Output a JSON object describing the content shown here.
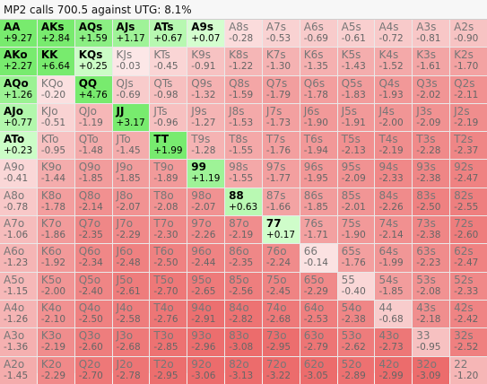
{
  "title": "MP2 calls 700.5 against UTG: 8.1%",
  "rows": [
    [
      [
        "AA",
        "+9.27"
      ],
      [
        "AKs",
        "+2.84"
      ],
      [
        "AQs",
        "+1.59"
      ],
      [
        "AJs",
        "+1.17"
      ],
      [
        "ATs",
        "+0.67"
      ],
      [
        "A9s",
        "+0.07"
      ],
      [
        "A8s",
        "-0.28"
      ],
      [
        "A7s",
        "-0.53"
      ],
      [
        "A6s",
        "-0.69"
      ],
      [
        "A5s",
        "-0.61"
      ],
      [
        "A4s",
        "-0.72"
      ],
      [
        "A3s",
        "-0.81"
      ],
      [
        "A2s",
        "-0.90"
      ]
    ],
    [
      [
        "AKo",
        "+2.27"
      ],
      [
        "KK",
        "+6.64"
      ],
      [
        "KQs",
        "+0.25"
      ],
      [
        "KJs",
        "-0.03"
      ],
      [
        "KTs",
        "-0.45"
      ],
      [
        "K9s",
        "-0.91"
      ],
      [
        "K8s",
        "-1.22"
      ],
      [
        "K7s",
        "-1.30"
      ],
      [
        "K6s",
        "-1.35"
      ],
      [
        "K5s",
        "-1.43"
      ],
      [
        "K4s",
        "-1.52"
      ],
      [
        "K3s",
        "-1.61"
      ],
      [
        "K2s",
        "-1.70"
      ]
    ],
    [
      [
        "AQo",
        "+1.26"
      ],
      [
        "KQo",
        "-0.20"
      ],
      [
        "QQ",
        "+4.76"
      ],
      [
        "QJs",
        "-0.69"
      ],
      [
        "QTs",
        "-0.98"
      ],
      [
        "Q9s",
        "-1.32"
      ],
      [
        "Q8s",
        "-1.59"
      ],
      [
        "Q7s",
        "-1.79"
      ],
      [
        "Q6s",
        "-1.78"
      ],
      [
        "Q5s",
        "-1.83"
      ],
      [
        "Q4s",
        "-1.93"
      ],
      [
        "Q3s",
        "-2.02"
      ],
      [
        "Q2s",
        "-2.11"
      ]
    ],
    [
      [
        "AJo",
        "+0.77"
      ],
      [
        "KJo",
        "-0.51"
      ],
      [
        "QJo",
        "-1.19"
      ],
      [
        "JJ",
        "+3.17"
      ],
      [
        "JTs",
        "-0.96"
      ],
      [
        "J9s",
        "-1.27"
      ],
      [
        "J8s",
        "-1.53"
      ],
      [
        "J7s",
        "-1.73"
      ],
      [
        "J6s",
        "-1.90"
      ],
      [
        "J5s",
        "-1.91"
      ],
      [
        "J4s",
        "-2.00"
      ],
      [
        "J3s",
        "-2.09"
      ],
      [
        "J2s",
        "-2.19"
      ]
    ],
    [
      [
        "ATo",
        "+0.23"
      ],
      [
        "KTo",
        "-0.95"
      ],
      [
        "QTo",
        "-1.48"
      ],
      [
        "JTo",
        "-1.45"
      ],
      [
        "TT",
        "+1.99"
      ],
      [
        "T9s",
        "-1.28"
      ],
      [
        "T8s",
        "-1.55"
      ],
      [
        "T7s",
        "-1.76"
      ],
      [
        "T6s",
        "-1.94"
      ],
      [
        "T5s",
        "-2.13"
      ],
      [
        "T4s",
        "-2.19"
      ],
      [
        "T3s",
        "-2.28"
      ],
      [
        "T2s",
        "-2.37"
      ]
    ],
    [
      [
        "A9o",
        "-0.41"
      ],
      [
        "K9o",
        "-1.44"
      ],
      [
        "Q9o",
        "-1.85"
      ],
      [
        "J9o",
        "-1.85"
      ],
      [
        "T9o",
        "-1.89"
      ],
      [
        "99",
        "+1.19"
      ],
      [
        "98s",
        "-1.55"
      ],
      [
        "97s",
        "-1.77"
      ],
      [
        "96s",
        "-1.95"
      ],
      [
        "95s",
        "-2.09"
      ],
      [
        "94s",
        "-2.33"
      ],
      [
        "93s",
        "-2.38"
      ],
      [
        "92s",
        "-2.47"
      ]
    ],
    [
      [
        "A8o",
        "-0.78"
      ],
      [
        "K8o",
        "-1.78"
      ],
      [
        "Q8o",
        "-2.14"
      ],
      [
        "J8o",
        "-2.07"
      ],
      [
        "T8o",
        "-2.08"
      ],
      [
        "98o",
        "-2.07"
      ],
      [
        "88",
        "+0.63"
      ],
      [
        "87s",
        "-1.66"
      ],
      [
        "86s",
        "-1.85"
      ],
      [
        "85s",
        "-2.01"
      ],
      [
        "84s",
        "-2.26"
      ],
      [
        "83s",
        "-2.50"
      ],
      [
        "82s",
        "-2.55"
      ]
    ],
    [
      [
        "A7o",
        "-1.06"
      ],
      [
        "K7o",
        "-1.86"
      ],
      [
        "Q7o",
        "-2.35"
      ],
      [
        "J7o",
        "-2.29"
      ],
      [
        "T7o",
        "-2.30"
      ],
      [
        "97o",
        "-2.26"
      ],
      [
        "87o",
        "-2.19"
      ],
      [
        "77",
        "+0.17"
      ],
      [
        "76s",
        "-1.71"
      ],
      [
        "75s",
        "-1.90"
      ],
      [
        "74s",
        "-2.14"
      ],
      [
        "73s",
        "-2.38"
      ],
      [
        "72s",
        "-2.60"
      ]
    ],
    [
      [
        "A6o",
        "-1.23"
      ],
      [
        "K6o",
        "-1.92"
      ],
      [
        "Q6o",
        "-2.34"
      ],
      [
        "J6o",
        "-2.48"
      ],
      [
        "T6o",
        "-2.50"
      ],
      [
        "96o",
        "-2.44"
      ],
      [
        "86o",
        "-2.35"
      ],
      [
        "76o",
        "-2.24"
      ],
      [
        "66",
        "-0.14"
      ],
      [
        "65s",
        "-1.76"
      ],
      [
        "64s",
        "-1.99"
      ],
      [
        "63s",
        "-2.23"
      ],
      [
        "62s",
        "-2.47"
      ]
    ],
    [
      [
        "A5o",
        "-1.15"
      ],
      [
        "K5o",
        "-2.00"
      ],
      [
        "Q5o",
        "-2.40"
      ],
      [
        "J5o",
        "-2.61"
      ],
      [
        "T5o",
        "-2.70"
      ],
      [
        "95o",
        "-2.65"
      ],
      [
        "85o",
        "-2.56"
      ],
      [
        "75o",
        "-2.45"
      ],
      [
        "65o",
        "-2.29"
      ],
      [
        "55",
        "-0.40"
      ],
      [
        "54s",
        "-1.85"
      ],
      [
        "53s",
        "-2.08"
      ],
      [
        "52s",
        "-2.33"
      ]
    ],
    [
      [
        "A4o",
        "-1.26"
      ],
      [
        "K4o",
        "-2.10"
      ],
      [
        "Q4o",
        "-2.50"
      ],
      [
        "J4o",
        "-2.58"
      ],
      [
        "T4o",
        "-2.76"
      ],
      [
        "94o",
        "-2.91"
      ],
      [
        "84o",
        "-2.82"
      ],
      [
        "74o",
        "-2.68"
      ],
      [
        "64o",
        "-2.53"
      ],
      [
        "54o",
        "-2.38"
      ],
      [
        "44",
        "-0.68"
      ],
      [
        "43s",
        "-2.18"
      ],
      [
        "42s",
        "-2.42"
      ]
    ],
    [
      [
        "A3o",
        "-1.36"
      ],
      [
        "K3o",
        "-2.19"
      ],
      [
        "Q3o",
        "-2.60"
      ],
      [
        "J3o",
        "-2.68"
      ],
      [
        "T3o",
        "-2.85"
      ],
      [
        "93o",
        "-2.96"
      ],
      [
        "83o",
        "-3.08"
      ],
      [
        "73o",
        "-2.95"
      ],
      [
        "63o",
        "-2.79"
      ],
      [
        "53o",
        "-2.62"
      ],
      [
        "43o",
        "-2.73"
      ],
      [
        "33",
        "-0.95"
      ],
      [
        "32s",
        "-2.52"
      ]
    ],
    [
      [
        "A2o",
        "-1.45"
      ],
      [
        "K2o",
        "-2.29"
      ],
      [
        "Q2o",
        "-2.70"
      ],
      [
        "J2o",
        "-2.78"
      ],
      [
        "T2o",
        "-2.95"
      ],
      [
        "92o",
        "-3.06"
      ],
      [
        "82o",
        "-3.13"
      ],
      [
        "72o",
        "-3.22"
      ],
      [
        "62o",
        "-3.05"
      ],
      [
        "52o",
        "-2.89"
      ],
      [
        "42o",
        "-2.99"
      ],
      [
        "32o",
        "-3.09"
      ],
      [
        "22",
        "-1.20"
      ]
    ]
  ]
}
